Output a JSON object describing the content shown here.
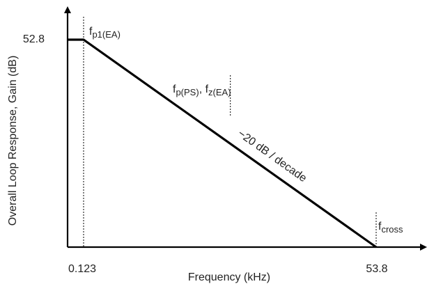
{
  "chart_data": {
    "type": "line",
    "title": "",
    "xlabel": "Frequency (kHz)",
    "ylabel": "Overall Loop Response, Gain (dB)",
    "x_scale": "log",
    "grid": false,
    "legend": "none",
    "line_color": "#000000",
    "series": [
      {
        "x": [
          0.123,
          53.8
        ],
        "y": [
          52.8,
          0
        ]
      }
    ],
    "x_ticks": [
      "0.123",
      "53.8"
    ],
    "y_ticks": [
      "52.8"
    ],
    "annotations": {
      "fp1": {
        "base": "f",
        "sub": "p1(EA)",
        "x": 0.123
      },
      "fps": {
        "base1": "f",
        "sub1": "p(PS)",
        "sep": ", ",
        "base2": "f",
        "sub2": "z(EA)",
        "x": 2.6
      },
      "fcross": {
        "base": "f",
        "sub": "cross",
        "x": 53.8
      },
      "slope": "−20 dB / decade"
    }
  }
}
